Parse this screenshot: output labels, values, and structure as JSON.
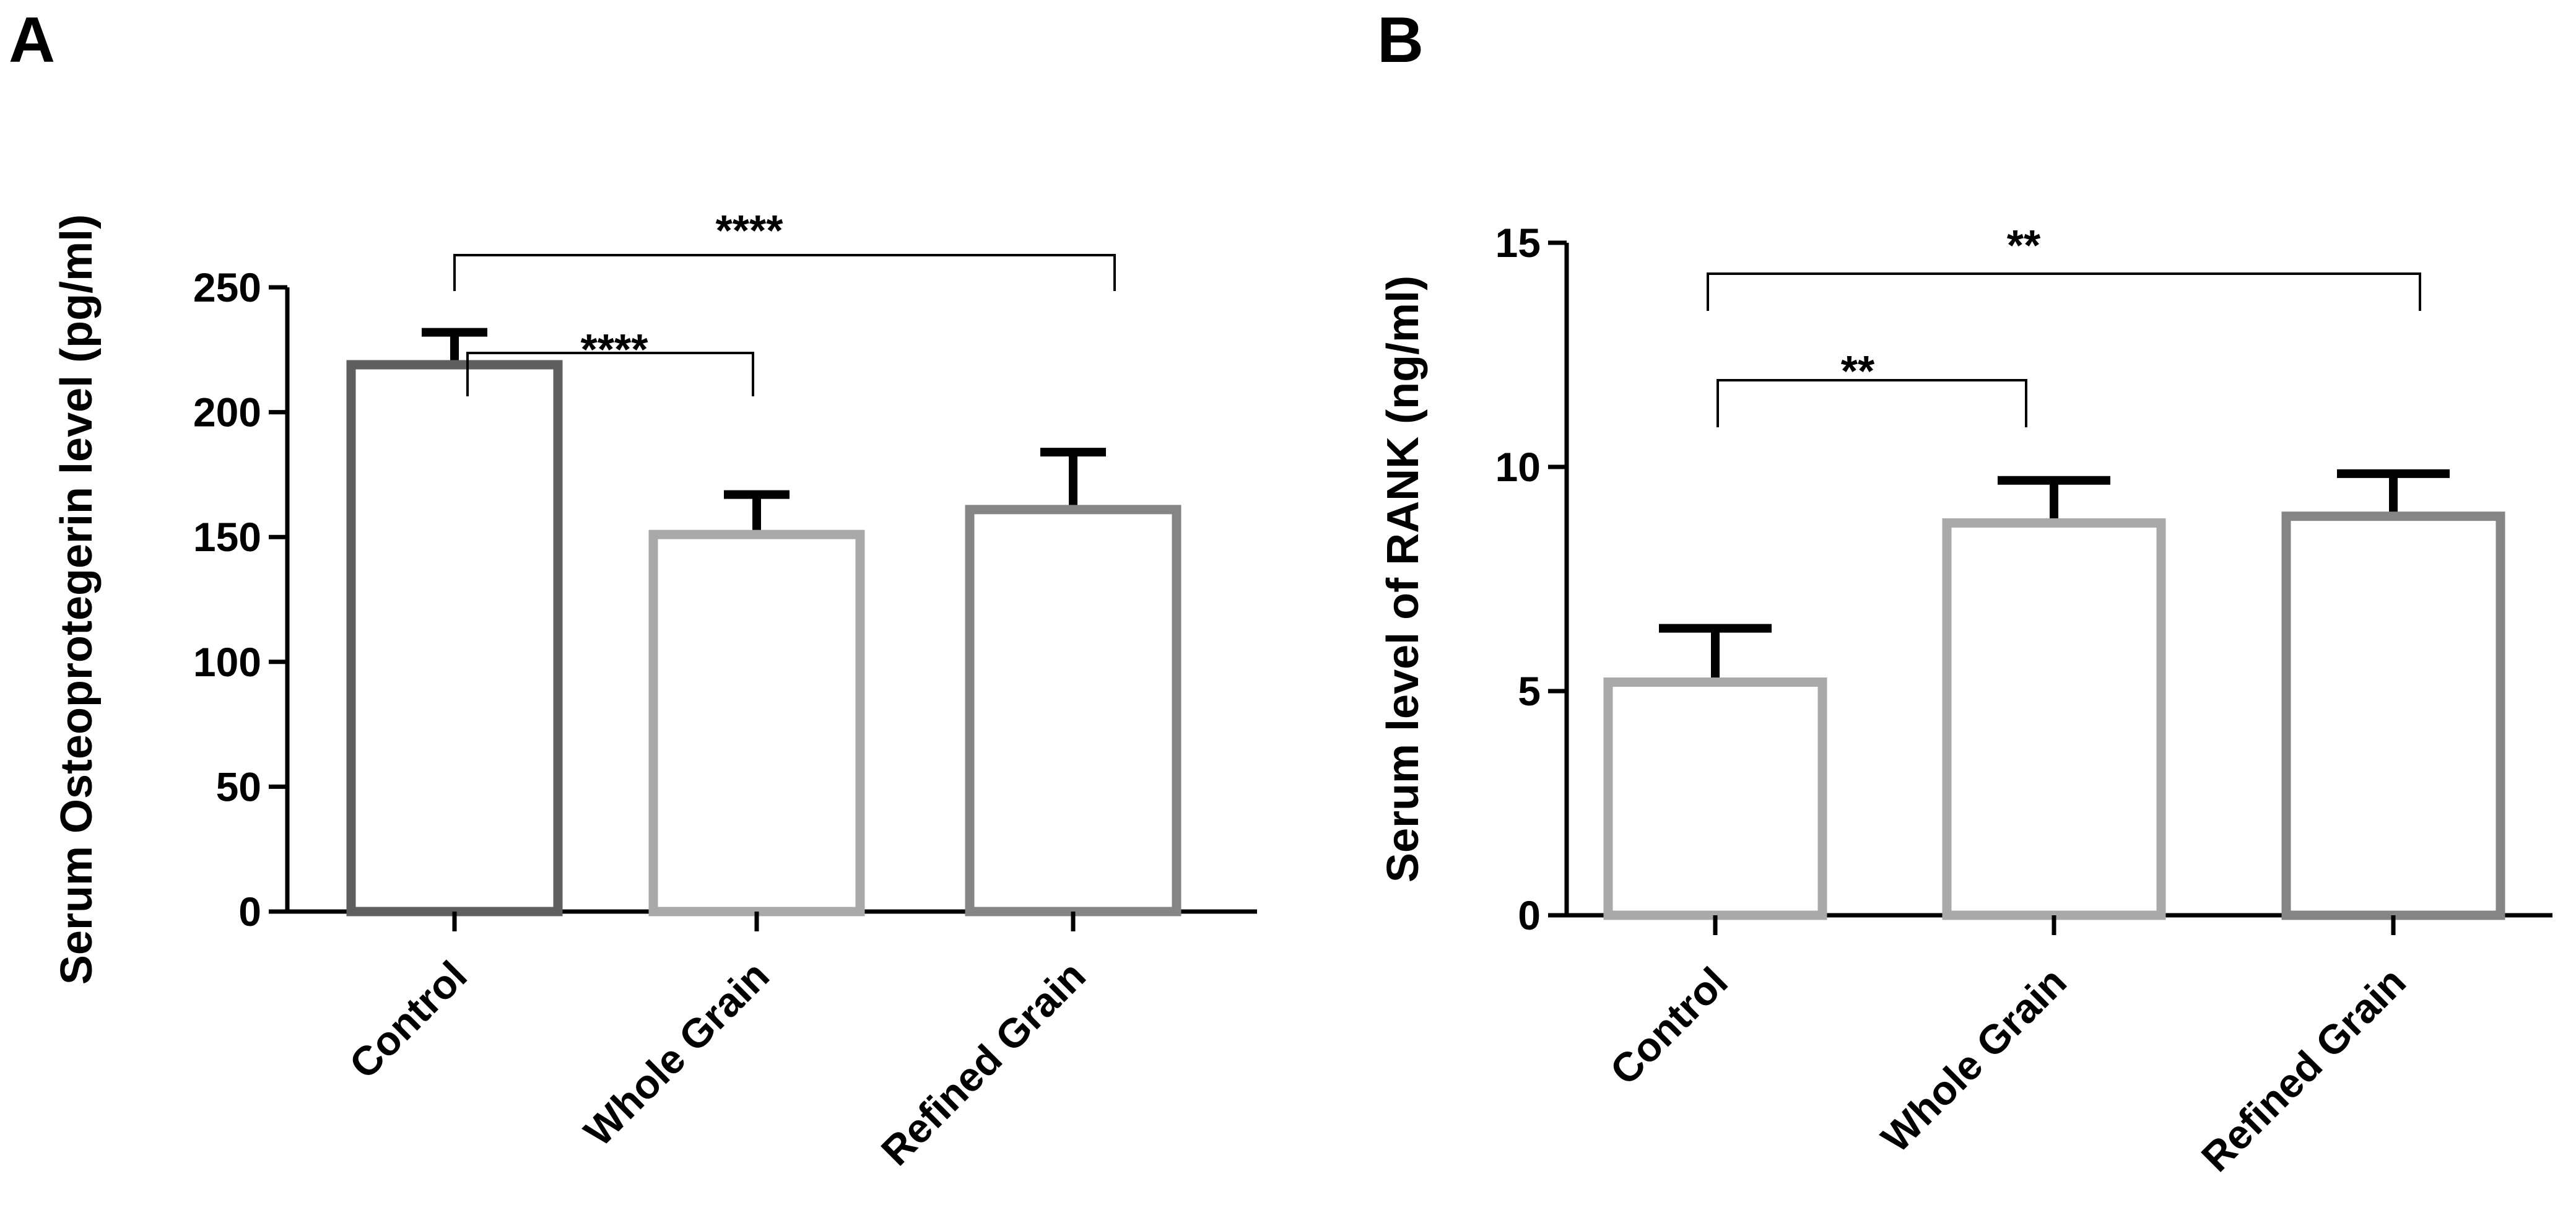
{
  "chart_data": [
    {
      "panel": "A",
      "type": "bar",
      "title": "",
      "xlabel": "",
      "ylabel": "Serum Osteoprotegerin level (pg/ml)",
      "ylim": [
        0,
        250
      ],
      "yticks": [
        0,
        50,
        100,
        150,
        200,
        250
      ],
      "ytick_labels": [
        "0",
        "50",
        "100",
        "150",
        "200",
        "250"
      ],
      "categories": [
        "Control",
        "Whole Grain",
        "Refined Grain"
      ],
      "values": [
        219,
        151,
        161
      ],
      "errors": [
        13,
        16,
        23
      ],
      "bar_colors": [
        "#5f5f5f",
        "#a9a9a9",
        "#858585"
      ],
      "grid": false,
      "significance": [
        {
          "from": "Control",
          "to": "Whole Grain",
          "label": "****"
        },
        {
          "from": "Control",
          "to": "Refined Grain",
          "label": "****"
        }
      ]
    },
    {
      "panel": "B",
      "type": "bar",
      "title": "",
      "xlabel": "",
      "ylabel": "Serum level of RANK (ng/ml)",
      "ylim": [
        0,
        15
      ],
      "yticks": [
        0,
        5,
        10,
        15
      ],
      "ytick_labels": [
        "0",
        "5",
        "10",
        "15"
      ],
      "categories": [
        "Control",
        "Whole Grain",
        "Refined Grain"
      ],
      "values": [
        5.2,
        8.75,
        8.9
      ],
      "errors": [
        1.2,
        0.95,
        0.95
      ],
      "bar_colors": [
        "#a9a9a9",
        "#a9a9a9",
        "#858585"
      ],
      "grid": false,
      "significance": [
        {
          "from": "Control",
          "to": "Whole Grain",
          "label": "**"
        },
        {
          "from": "Control",
          "to": "Refined Grain",
          "label": "**"
        }
      ]
    }
  ]
}
